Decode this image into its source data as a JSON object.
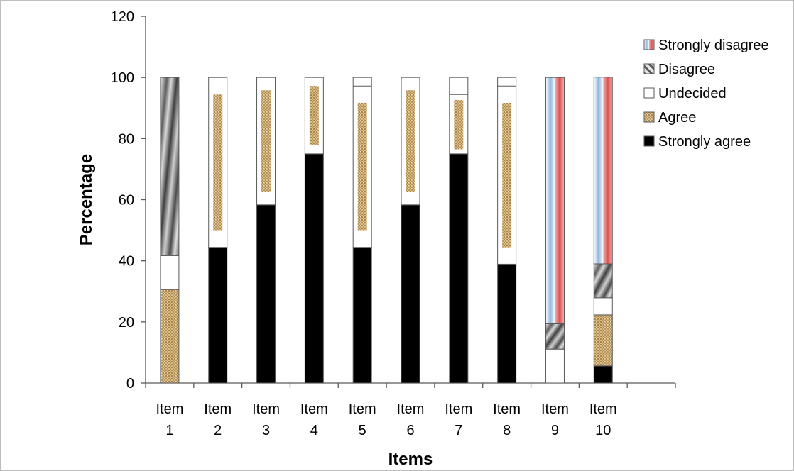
{
  "chart_data": {
    "type": "bar",
    "stacked": true,
    "title": "",
    "xlabel": "Items",
    "ylabel": "Percentage",
    "ylim": [
      0,
      120
    ],
    "yticks": [
      0,
      20,
      40,
      60,
      80,
      100,
      120
    ],
    "grid": false,
    "legend_position": "top-right",
    "categories": [
      [
        "Item",
        "1"
      ],
      [
        "Item",
        "2"
      ],
      [
        "Item",
        "3"
      ],
      [
        "Item",
        "4"
      ],
      [
        "Item",
        "5"
      ],
      [
        "Item",
        "6"
      ],
      [
        "Item",
        "7"
      ],
      [
        "Item",
        "8"
      ],
      [
        "Item",
        "9"
      ],
      [
        "Item",
        "10"
      ]
    ],
    "series": [
      {
        "name": "Strongly agree",
        "pattern": "solid-black",
        "values": [
          0,
          44.4,
          58.3,
          75,
          44.4,
          58.3,
          75,
          38.9,
          0,
          5.6
        ]
      },
      {
        "name": "Agree",
        "pattern": "woven-tan",
        "values": [
          30.6,
          0,
          0,
          0,
          0,
          0,
          0,
          0,
          0,
          16.7
        ]
      },
      {
        "name": "Undecided",
        "pattern": "white",
        "values": [
          11.1,
          55.6,
          41.7,
          25,
          55.6,
          41.7,
          25,
          61.1,
          11.1,
          5.6
        ]
      },
      {
        "name": "Disagree",
        "pattern": "gray-diagonal",
        "values": [
          58.3,
          0,
          0,
          0,
          0,
          0,
          0,
          0,
          8.3,
          11.1
        ]
      },
      {
        "name": "Strongly disagree",
        "pattern": "blue-red-stripes",
        "values": [
          0,
          0,
          0,
          0,
          0,
          0,
          0,
          0,
          80.6,
          61.1
        ]
      }
    ],
    "overlay_bands": [
      {
        "series": "Agree",
        "item_index": 0,
        "range": [
          3.4,
          27.4
        ]
      },
      {
        "series": "Agree",
        "item_index": 1,
        "range": [
          50.0,
          94.4
        ]
      },
      {
        "series": "Agree",
        "item_index": 2,
        "range": [
          62.5,
          95.8
        ]
      },
      {
        "series": "Agree",
        "item_index": 3,
        "range": [
          77.8,
          97.2
        ]
      },
      {
        "series": "Agree",
        "item_index": 4,
        "range": [
          50.0,
          91.7
        ]
      },
      {
        "series": "Agree",
        "item_index": 5,
        "range": [
          62.5,
          95.8
        ]
      },
      {
        "series": "Agree",
        "item_index": 6,
        "range": [
          76.5,
          92.6
        ]
      },
      {
        "series": "Agree",
        "item_index": 7,
        "range": [
          44.4,
          91.7
        ]
      },
      {
        "series": "Agree",
        "item_index": 9,
        "range": [
          7.4,
          20.4
        ]
      }
    ],
    "minor_boundaries": [
      {
        "item_index": 4,
        "value": 97.2
      },
      {
        "item_index": 6,
        "value": 94.4
      },
      {
        "item_index": 7,
        "value": 97.2
      }
    ],
    "colors": {
      "black": "#000000",
      "bar_outline": "#5a5a5a",
      "axis": "#595959",
      "tan": "#c9a86a",
      "tan_dark": "#8a6a35",
      "blue": "#9dbfe0",
      "red": "#e07070",
      "gray_light": "#e8e8e8",
      "gray_dark": "#555555"
    }
  }
}
